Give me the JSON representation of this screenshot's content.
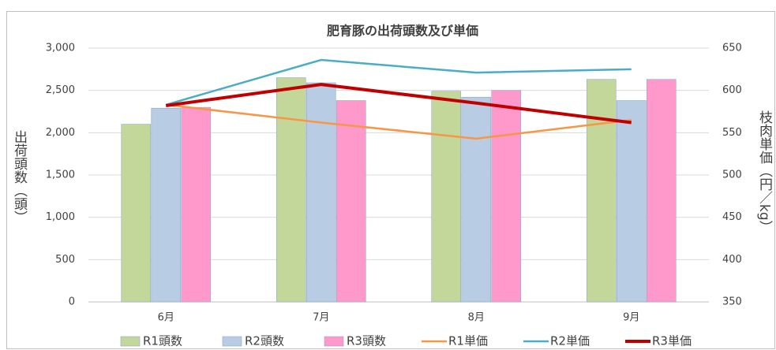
{
  "chart_data": {
    "type": "bar",
    "title": "肥育豚の出荷頭数及び単価",
    "y_label": "出荷頭数（頭）",
    "y2_label": "枝肉単価（円／kg）",
    "categories": [
      "6月",
      "7月",
      "8月",
      "9月"
    ],
    "series": [
      {
        "name": "R1頭数",
        "type": "bar",
        "color": "#c4d79b",
        "values": [
          2100,
          2650,
          2490,
          2630
        ]
      },
      {
        "name": "R2頭数",
        "type": "bar",
        "color": "#b8cce4",
        "values": [
          2290,
          2590,
          2420,
          2380
        ]
      },
      {
        "name": "R3頭数",
        "type": "bar",
        "color": "#ff99cc",
        "values": [
          2300,
          2380,
          2500,
          2630
        ]
      },
      {
        "name": "R1単価",
        "type": "line",
        "axis": "y2",
        "color": "#f79646",
        "values": [
          583,
          562,
          543,
          565
        ]
      },
      {
        "name": "R2単価",
        "type": "line",
        "axis": "y2",
        "color": "#4bacc6",
        "values": [
          583,
          636,
          621,
          625
        ]
      },
      {
        "name": "R3単価",
        "type": "line",
        "axis": "y2",
        "color": "#c00000",
        "values": [
          582,
          607,
          585,
          562
        ]
      }
    ],
    "ylim": [
      0,
      3000
    ],
    "yticks": [
      0,
      500,
      {
        "value": 1000,
        "label": "1,000"
      },
      {
        "value": 1500,
        "label": "1,500"
      },
      {
        "value": 2000,
        "label": "2,000"
      },
      {
        "value": 2500,
        "label": "2,500"
      },
      {
        "value": 3000,
        "label": "3,000"
      }
    ],
    "y2lim": [
      350,
      650
    ],
    "y2ticks": [
      350,
      400,
      450,
      500,
      550,
      600,
      650
    ],
    "grid": true,
    "legend": "bottom"
  }
}
